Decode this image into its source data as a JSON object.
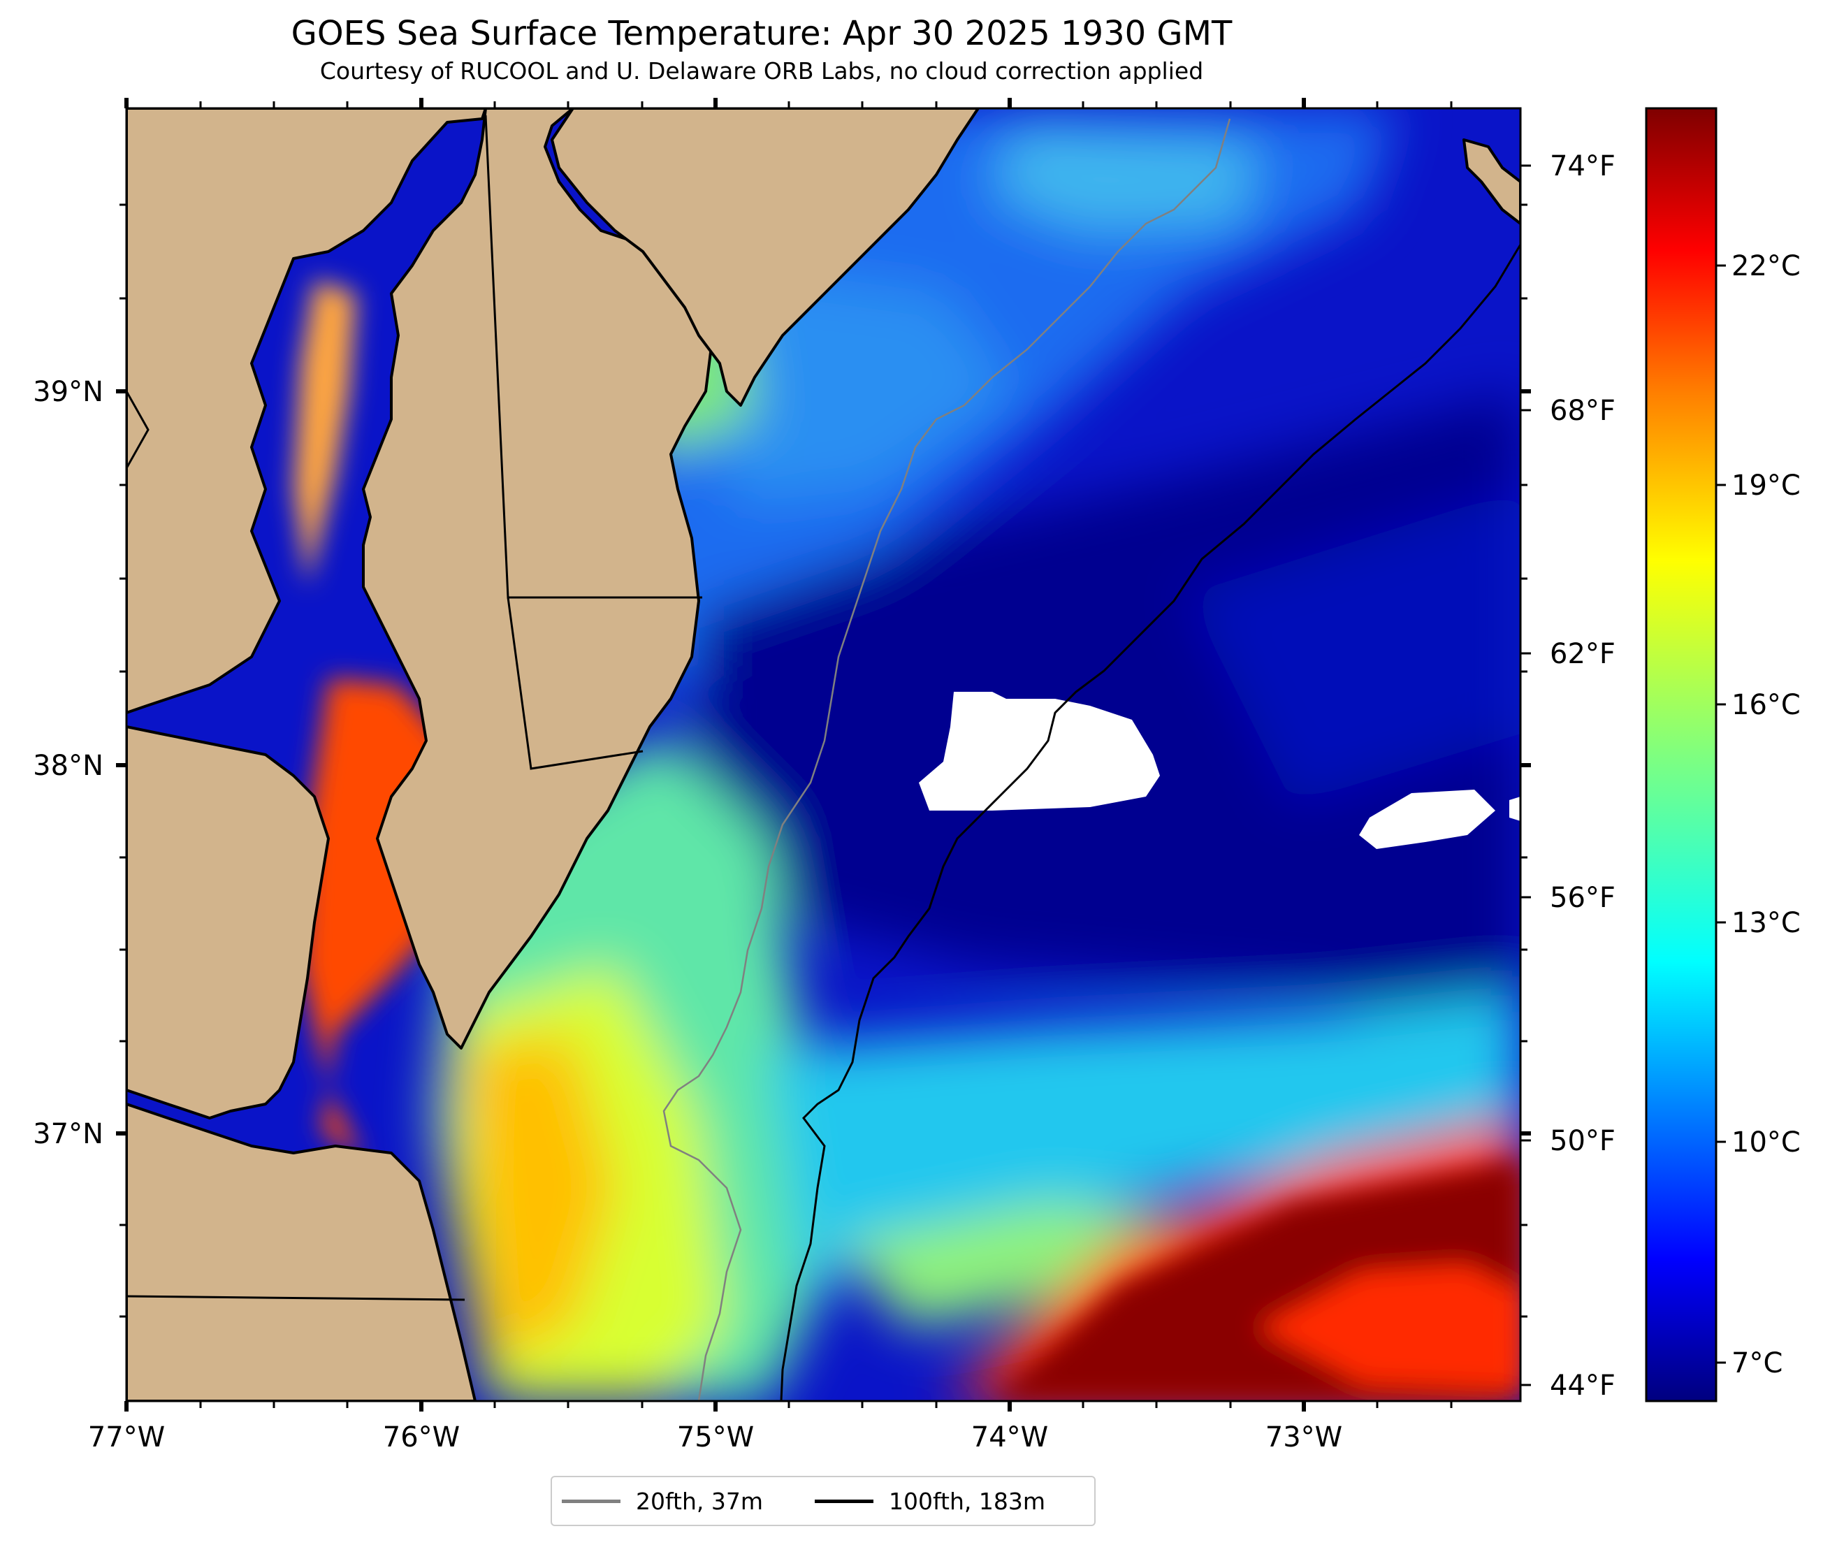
{
  "title": "GOES Sea Surface Temperature: Apr 30 2025 1930 GMT",
  "subtitle": "Courtesy of RUCOOL and U. Delaware ORB Labs, no cloud correction applied",
  "axes": {
    "lon_labels": [
      "77°W",
      "76°W",
      "75°W",
      "74°W",
      "73°W"
    ],
    "lat_labels": [
      "39°N",
      "38°N",
      "37°N"
    ],
    "fahrenheit_labels": [
      "74°F",
      "68°F",
      "62°F",
      "56°F",
      "50°F",
      "44°F"
    ],
    "celsius_labels": [
      "22°C",
      "19°C",
      "16°C",
      "13°C",
      "10°C",
      "7°C"
    ]
  },
  "colorbar": {
    "stops": [
      "#00007f",
      "#0000ff",
      "#007fff",
      "#00ffff",
      "#7fff7f",
      "#ffff00",
      "#ff7f00",
      "#ff0000",
      "#7f0000"
    ]
  },
  "colors": {
    "land": "#d2b48c",
    "no_data": "#ffffff",
    "isobath_20fth": "#808080",
    "isobath_100fth": "#000000"
  },
  "legend": [
    {
      "label": "20fth, 37m"
    },
    {
      "label": "100fth, 183m"
    }
  ]
}
